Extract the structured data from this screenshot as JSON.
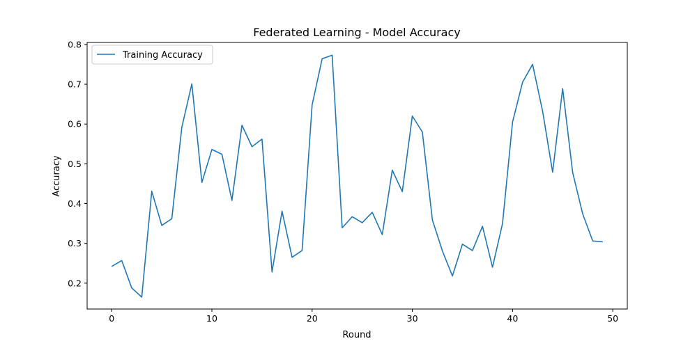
{
  "chart_data": {
    "type": "line",
    "title": "Federated Learning - Model Accuracy",
    "xlabel": "Round",
    "ylabel": "Accuracy",
    "xlim": [
      -2.45,
      51.45
    ],
    "ylim": [
      0.135,
      0.805
    ],
    "xticks": [
      0,
      10,
      20,
      30,
      40,
      50
    ],
    "yticks": [
      0.2,
      0.3,
      0.4,
      0.5,
      0.6,
      0.7,
      0.8
    ],
    "grid": false,
    "legend_position": "upper-left",
    "series": [
      {
        "name": "Training Accuracy",
        "color": "#1f77b4",
        "x": [
          0,
          1,
          2,
          3,
          4,
          5,
          6,
          7,
          8,
          9,
          10,
          11,
          12,
          13,
          14,
          15,
          16,
          17,
          18,
          19,
          20,
          21,
          22,
          23,
          24,
          25,
          26,
          27,
          28,
          29,
          30,
          31,
          32,
          33,
          34,
          35,
          36,
          37,
          38,
          39,
          40,
          41,
          42,
          43,
          44,
          45,
          46,
          47,
          48,
          49
        ],
        "y": [
          0.242,
          0.257,
          0.188,
          0.165,
          0.431,
          0.345,
          0.362,
          0.592,
          0.701,
          0.453,
          0.536,
          0.524,
          0.408,
          0.597,
          0.543,
          0.562,
          0.228,
          0.381,
          0.265,
          0.282,
          0.648,
          0.764,
          0.773,
          0.339,
          0.367,
          0.352,
          0.378,
          0.322,
          0.484,
          0.43,
          0.62,
          0.58,
          0.359,
          0.281,
          0.218,
          0.298,
          0.282,
          0.343,
          0.24,
          0.35,
          0.605,
          0.705,
          0.75,
          0.632,
          0.479,
          0.689,
          0.478,
          0.374,
          0.306,
          0.304
        ]
      }
    ]
  }
}
